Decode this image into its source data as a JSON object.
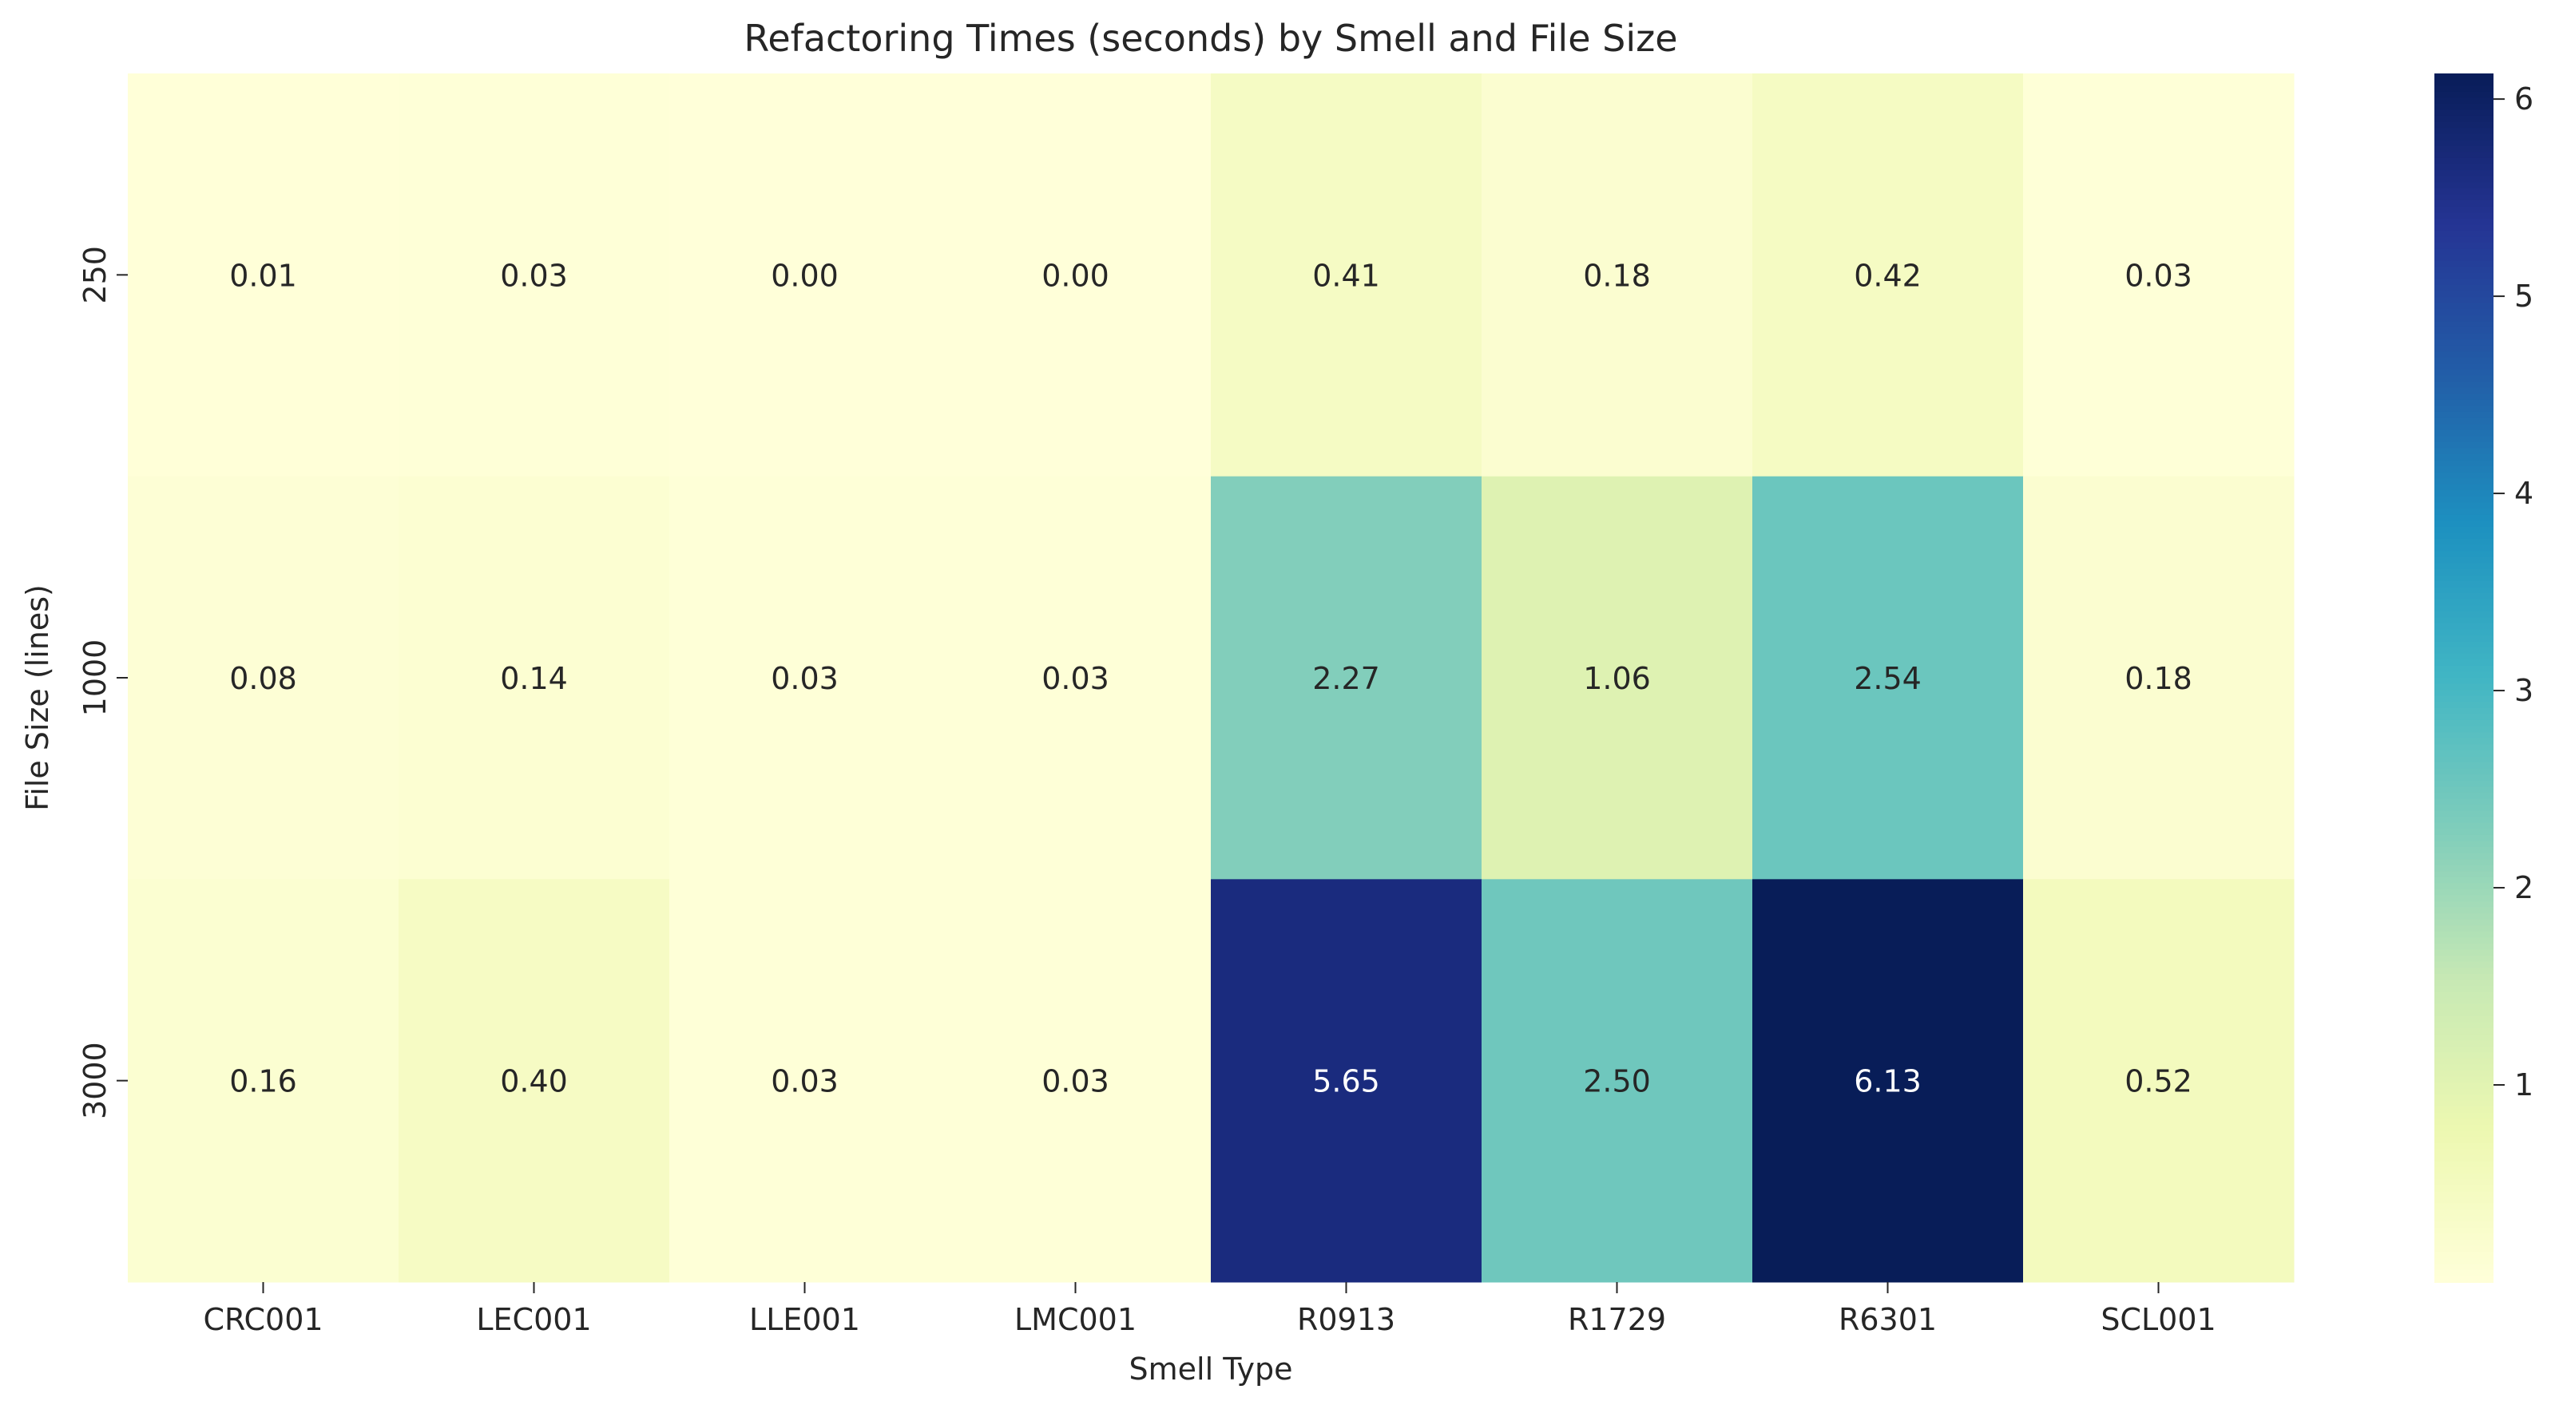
{
  "chart_data": {
    "type": "heatmap",
    "title": "Refactoring Times (seconds) by Smell and File Size",
    "xlabel": "Smell Type",
    "ylabel": "File Size (lines)",
    "x_categories": [
      "CRC001",
      "LEC001",
      "LLE001",
      "LMC001",
      "R0913",
      "R1729",
      "R6301",
      "SCL001"
    ],
    "y_categories": [
      "250",
      "1000",
      "3000"
    ],
    "values": [
      [
        0.01,
        0.03,
        0.0,
        0.0,
        0.41,
        0.18,
        0.42,
        0.03
      ],
      [
        0.08,
        0.14,
        0.03,
        0.03,
        2.27,
        1.06,
        2.54,
        0.18
      ],
      [
        0.16,
        0.4,
        0.03,
        0.03,
        5.65,
        2.5,
        6.13,
        0.52
      ]
    ],
    "value_format": "0.00",
    "colormap": "YlGnBu",
    "color_range": [
      0.0,
      6.13
    ],
    "colorbar_ticks": [
      "1",
      "2",
      "3",
      "4",
      "5",
      "6"
    ]
  }
}
